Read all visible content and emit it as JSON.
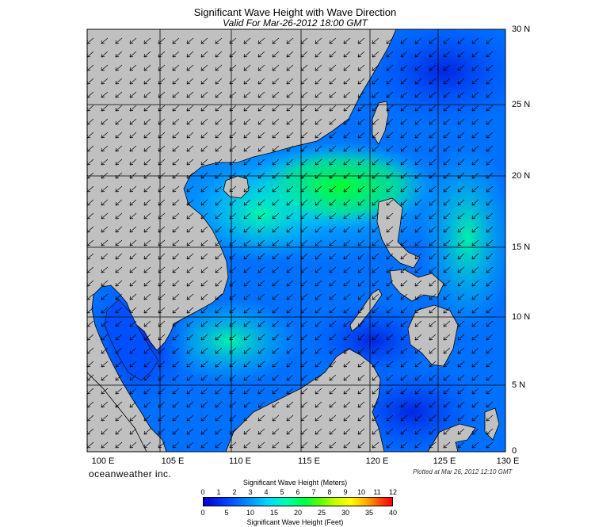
{
  "header": {
    "title": "Significant Wave Height with Wave Direction",
    "subtitle": "Valid For Mar-26-2012 18:00 GMT"
  },
  "map": {
    "lat_labels": [
      "30 N",
      "25 N",
      "20 N",
      "15 N",
      "10 N",
      "5 N",
      "0"
    ],
    "lon_labels": [
      "100 E",
      "105 E",
      "110 E",
      "115 E",
      "120 E",
      "125 E",
      "130 E"
    ],
    "land_color": "#c0c0c0",
    "grid_color": "#000000",
    "arrow_direction": "southwest"
  },
  "footer": {
    "brand": "oceanweather inc.",
    "plotted": "Plotted at Mar 26, 2012 12:10 GMT"
  },
  "legend": {
    "meters_title": "Significant Wave Height (Meters)",
    "meters_ticks": [
      "0",
      "1",
      "2",
      "3",
      "4",
      "5",
      "6",
      "7",
      "8",
      "9",
      "10",
      "11",
      "12"
    ],
    "feet_title": "Significant Wave Height (Feet)",
    "feet_ticks": [
      "0",
      "5",
      "10",
      "15",
      "20",
      "25",
      "30",
      "35",
      "40"
    ]
  }
}
